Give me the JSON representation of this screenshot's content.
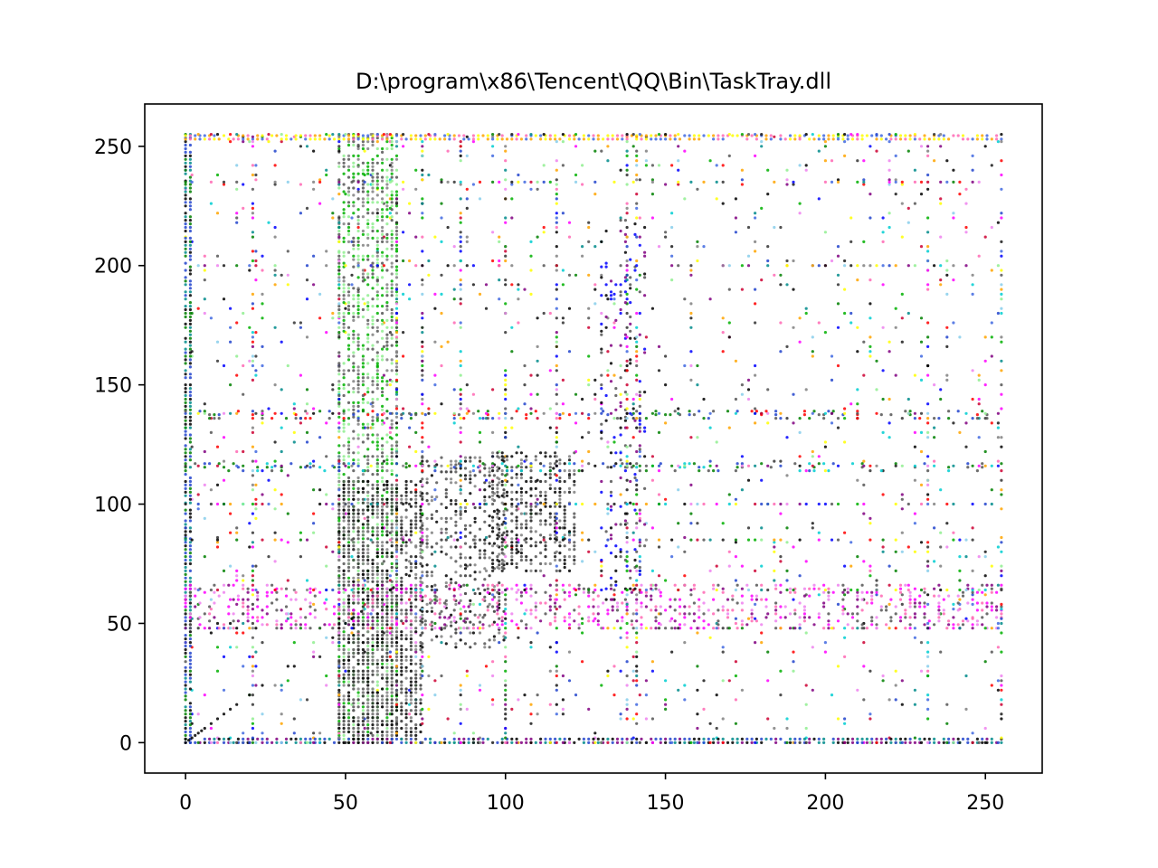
{
  "chart_data": {
    "type": "scatter",
    "title": "D:\\program\\x86\\Tencent\\QQ\\Bin\\TaskTray.dll",
    "xlabel": "",
    "ylabel": "",
    "xlim": [
      -12.75,
      267.75
    ],
    "ylim": [
      -12.75,
      267.75
    ],
    "xticks": [
      0,
      50,
      100,
      150,
      200,
      250
    ],
    "yticks": [
      0,
      50,
      100,
      150,
      200,
      250
    ],
    "grid": false,
    "marker_size": 1.6,
    "palette": [
      "#000000",
      "#1a1a1a",
      "#333333",
      "#555555",
      "#808080",
      "#0000ff",
      "#2244cc",
      "#4169e1",
      "#008000",
      "#00b000",
      "#90ee90",
      "#ff0000",
      "#cc0033",
      "#ff69b4",
      "#ee82ee",
      "#800080",
      "#00ced1",
      "#87ceeb",
      "#ffa500",
      "#ffff00",
      "#008b8b",
      "#ff00ff"
    ],
    "x_bands": [
      {
        "x": [
          0,
          2
        ],
        "y": [
          0,
          255
        ],
        "density": 0.85,
        "colors": [
          "#000000",
          "#008000",
          "#2244cc",
          "#008b8b"
        ]
      },
      {
        "x": [
          48,
          66
        ],
        "y": [
          0,
          255
        ],
        "density": 0.55,
        "colors": [
          "#90ee90",
          "#00b000",
          "#808080",
          "#555555"
        ]
      },
      {
        "x": [
          48,
          74
        ],
        "y": [
          0,
          110
        ],
        "density": 0.6,
        "colors": [
          "#000000",
          "#333333",
          "#555555",
          "#808080"
        ]
      },
      {
        "x": [
          74,
          100
        ],
        "y": [
          40,
          120
        ],
        "density": 0.35,
        "colors": [
          "#000000",
          "#333333",
          "#555555",
          "#808080"
        ]
      },
      {
        "x": [
          96,
          122
        ],
        "y": [
          72,
          122
        ],
        "density": 0.5,
        "colors": [
          "#000000",
          "#1a1a1a",
          "#555555",
          "#808080"
        ]
      },
      {
        "x": [
          130,
          144
        ],
        "y": [
          60,
          220
        ],
        "density": 0.18,
        "colors": [
          "#000000",
          "#555555",
          "#800080",
          "#0000ff"
        ]
      }
    ],
    "y_bands": [
      {
        "y": [
          48,
          66
        ],
        "x": [
          0,
          255
        ],
        "density": 0.32,
        "colors": [
          "#ee82ee",
          "#ff69b4",
          "#800080",
          "#555555",
          "#ff00ff"
        ]
      },
      {
        "y": [
          0,
          2
        ],
        "x": [
          0,
          255
        ],
        "density": 0.85,
        "colors": [
          "#000000",
          "#800080",
          "#008b8b",
          "#2244cc"
        ]
      },
      {
        "y": [
          253,
          255
        ],
        "x": [
          0,
          255
        ],
        "density": 0.8,
        "colors": [
          "#ffa500",
          "#ffff00",
          "#ff69b4",
          "#4169e1"
        ]
      },
      {
        "y": [
          136,
          140
        ],
        "x": [
          0,
          255
        ],
        "density": 0.25,
        "colors": [
          "#2244cc",
          "#008000",
          "#ff0000",
          "#555555"
        ]
      },
      {
        "y": [
          114,
          118
        ],
        "x": [
          0,
          255
        ],
        "density": 0.2,
        "colors": [
          "#008000",
          "#2244cc",
          "#555555",
          "#00ced1"
        ]
      }
    ],
    "column_lines": [
      21,
      48,
      66,
      74,
      86,
      100,
      116,
      138,
      141,
      232,
      255
    ],
    "row_lines": [
      0,
      48,
      64,
      85,
      100,
      116,
      138,
      200,
      235,
      255
    ],
    "background_density": 0.09,
    "series": [
      {
        "name": "",
        "x": [
          0,
          1,
          2,
          3,
          4,
          5,
          6,
          8,
          10,
          12,
          14,
          16,
          20,
          24,
          32,
          48,
          50,
          52,
          55,
          60,
          64,
          65,
          70,
          80,
          85,
          95,
          100,
          105,
          110,
          115,
          116,
          130,
          136,
          138,
          140,
          150,
          170,
          200,
          230,
          232,
          240,
          250,
          255
        ],
        "y": [
          0,
          1,
          2,
          3,
          4,
          5,
          6,
          8,
          10,
          12,
          14,
          16,
          20,
          24,
          32,
          48,
          50,
          52,
          55,
          60,
          64,
          65,
          70,
          80,
          85,
          95,
          100,
          105,
          110,
          115,
          116,
          130,
          136,
          138,
          140,
          150,
          170,
          200,
          230,
          232,
          240,
          250,
          255
        ]
      }
    ]
  }
}
